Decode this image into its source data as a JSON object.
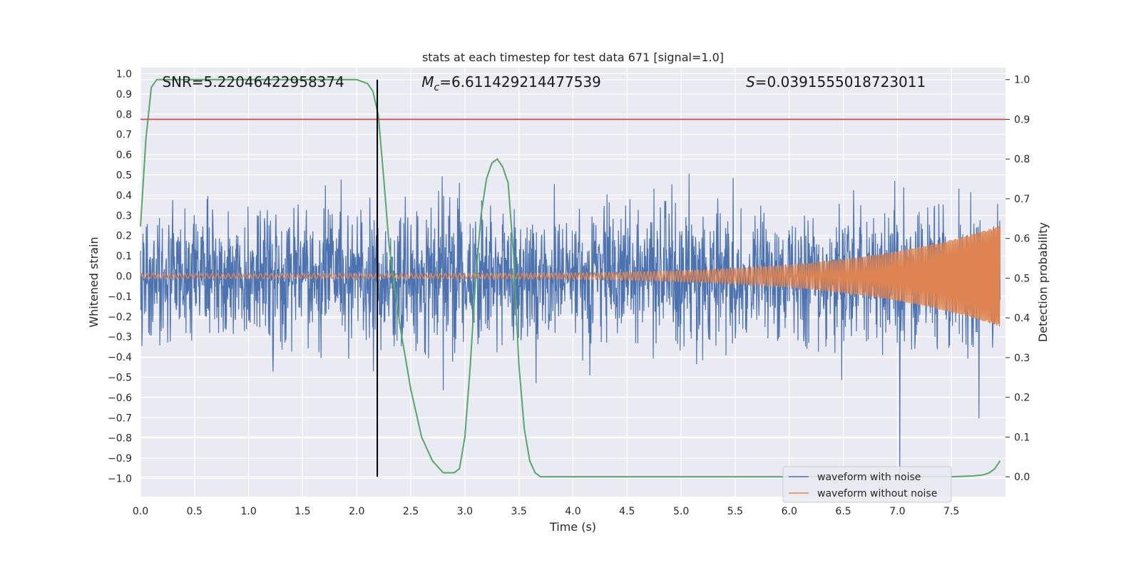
{
  "chart_data": {
    "type": "line",
    "title": "stats at each timestep for test data 671 [signal=1.0]",
    "xlabel": "Time (s)",
    "ylabel_left": "Whitened strain",
    "ylabel_right": "Detection probability",
    "xlim": [
      0.0,
      8.0
    ],
    "ylim_left": [
      -1.09,
      1.03
    ],
    "ylim_right": [
      -0.05,
      1.03
    ],
    "xticks": [
      "0.0",
      "0.5",
      "1.0",
      "1.5",
      "2.0",
      "2.5",
      "3.0",
      "3.5",
      "4.0",
      "4.5",
      "5.0",
      "5.5",
      "6.0",
      "6.5",
      "7.0",
      "7.5"
    ],
    "xtick_values": [
      0,
      0.5,
      1,
      1.5,
      2,
      2.5,
      3,
      3.5,
      4,
      4.5,
      5,
      5.5,
      6,
      6.5,
      7,
      7.5
    ],
    "yticks_left": [
      "1.0",
      "0.9",
      "0.8",
      "0.7",
      "0.6",
      "0.5",
      "0.4",
      "0.3",
      "0.2",
      "0.1",
      "0.0",
      "−0.1",
      "−0.2",
      "−0.3",
      "−0.4",
      "−0.5",
      "−0.6",
      "−0.7",
      "−0.8",
      "−0.9",
      "−1.0"
    ],
    "ytick_values_left": [
      1.0,
      0.9,
      0.8,
      0.7,
      0.6,
      0.5,
      0.4,
      0.3,
      0.2,
      0.1,
      0.0,
      -0.1,
      -0.2,
      -0.3,
      -0.4,
      -0.5,
      -0.6,
      -0.7,
      -0.8,
      -0.9,
      -1.0
    ],
    "yticks_right": [
      "1.0",
      "0.9",
      "0.8",
      "0.7",
      "0.6",
      "0.5",
      "0.4",
      "0.3",
      "0.2",
      "0.1",
      "0.0"
    ],
    "ytick_values_right": [
      1.0,
      0.9,
      0.8,
      0.7,
      0.6,
      0.5,
      0.4,
      0.3,
      0.2,
      0.1,
      0.0
    ],
    "grid": true,
    "annotations": {
      "snr": "SNR=5.22046422958374",
      "mc_symbol": "M",
      "mc_sub": "c",
      "mc_value": "=6.611429214477539",
      "s_symbol": "S",
      "s_value": "=0.0391555018723011"
    },
    "threshold_line": {
      "axis": "right",
      "y": 0.9,
      "color": "#c44e52"
    },
    "vertical_line": {
      "x": 2.19,
      "color": "#000000"
    },
    "series": [
      {
        "name": "waveform with noise",
        "axis": "left",
        "color": "#4c72b0",
        "style": "noise",
        "typical_amplitude": 0.3,
        "peak_amplitude": 0.93
      },
      {
        "name": "waveform without noise",
        "axis": "left",
        "color": "#dd8452",
        "style": "chirp",
        "amplitude_start": 0.012,
        "amplitude_end": 0.25
      },
      {
        "axis": "right",
        "color": "#55a868",
        "style": "line",
        "x": [
          0.0,
          0.05,
          0.1,
          0.15,
          0.3,
          0.5,
          1.0,
          1.5,
          2.0,
          2.1,
          2.15,
          2.2,
          2.25,
          2.3,
          2.4,
          2.5,
          2.6,
          2.7,
          2.8,
          2.9,
          2.95,
          3.0,
          3.05,
          3.1,
          3.15,
          3.2,
          3.25,
          3.3,
          3.35,
          3.4,
          3.45,
          3.5,
          3.55,
          3.6,
          3.65,
          3.7,
          3.8,
          4.0,
          5.0,
          6.0,
          7.0,
          7.5,
          7.7,
          7.8,
          7.85,
          7.9,
          7.95
        ],
        "y": [
          0.63,
          0.85,
          0.98,
          1.0,
          1.0,
          1.0,
          1.0,
          1.0,
          1.0,
          0.99,
          0.97,
          0.91,
          0.75,
          0.58,
          0.38,
          0.22,
          0.1,
          0.04,
          0.01,
          0.01,
          0.02,
          0.1,
          0.28,
          0.5,
          0.66,
          0.75,
          0.79,
          0.8,
          0.78,
          0.74,
          0.56,
          0.28,
          0.12,
          0.04,
          0.01,
          0.0,
          0.0,
          0.0,
          0.0,
          0.0,
          0.0,
          0.0,
          0.002,
          0.005,
          0.01,
          0.02,
          0.04
        ]
      }
    ],
    "legend": {
      "placement": "lower-right"
    }
  }
}
